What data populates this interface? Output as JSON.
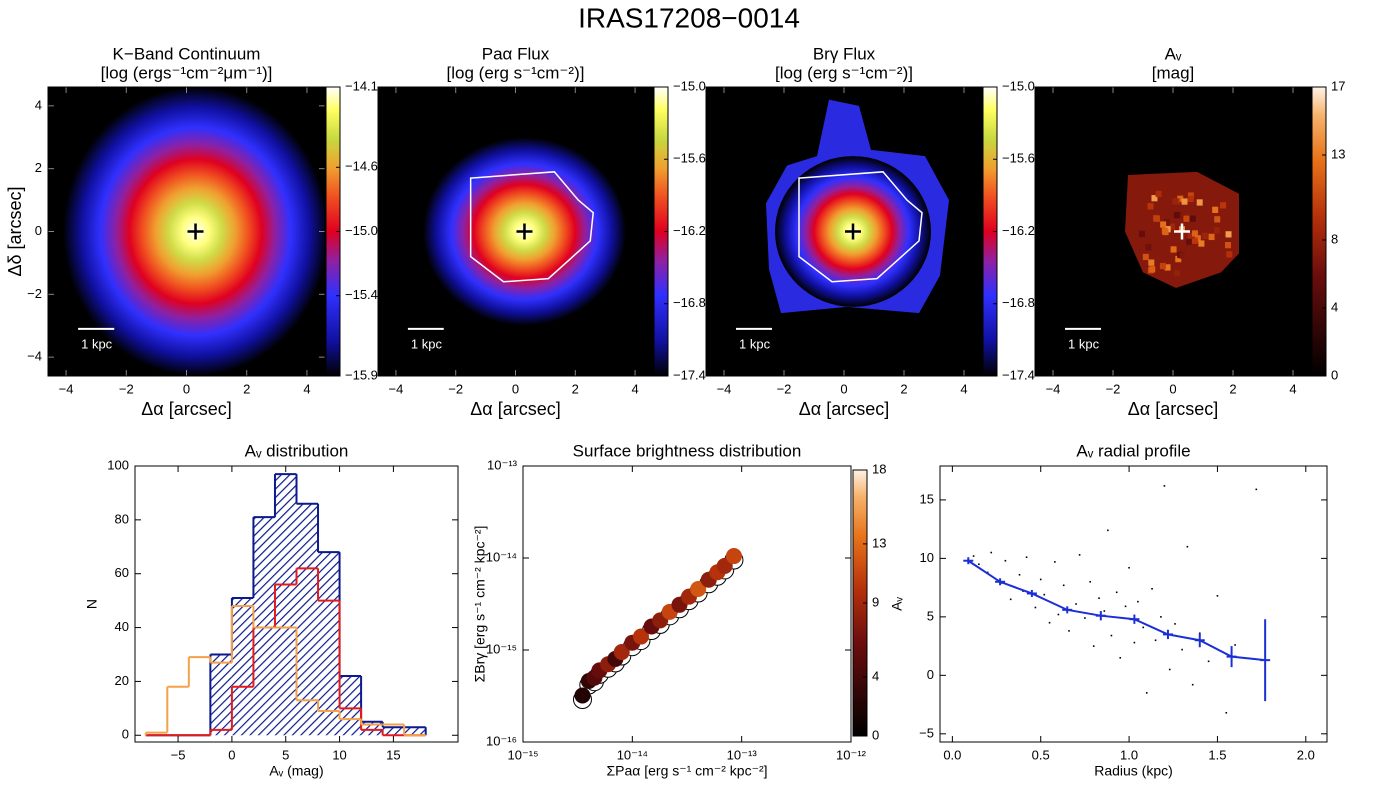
{
  "title": "IRAS17208−0014",
  "chart_data": [
    {
      "type": "image",
      "title": "K−Band Continuum",
      "subtitle": "[log (ergs⁻¹cm⁻²μm⁻¹)]",
      "xlabel": "Δα [arcsec]",
      "ylabel": "Δδ [arcsec]",
      "xlim": [
        -4.6,
        4.6
      ],
      "ylim": [
        -4.6,
        4.6
      ],
      "xticks": [
        {
          "value": -4,
          "label": "−4"
        },
        {
          "value": -2,
          "label": "−2"
        },
        0,
        2,
        4
      ],
      "yticks": [
        {
          "value": -4,
          "label": "−4"
        },
        {
          "value": -2,
          "label": "−2"
        },
        0,
        2,
        4
      ],
      "colormap": "rainbow",
      "contour": false,
      "marker_color": "#000000",
      "scale_bar_label": "1 kpc",
      "colorbar": {
        "lim": [
          -15.9,
          -14.1
        ],
        "ticks": [
          {
            "value": -15.9,
            "label": "−15.9"
          },
          {
            "value": -15.4,
            "label": "−15.4"
          },
          {
            "value": -15.0,
            "label": "−15.0"
          },
          {
            "value": -14.6,
            "label": "−14.6"
          },
          {
            "value": -14.1,
            "label": "−14.1"
          }
        ]
      }
    },
    {
      "type": "image",
      "title": "Paα Flux",
      "subtitle": "[log (erg s⁻¹cm⁻²)]",
      "xlabel": "Δα [arcsec]",
      "xlim": [
        -4.6,
        4.6
      ],
      "ylim": [
        -4.6,
        4.6
      ],
      "xticks": [
        {
          "value": -4,
          "label": "−4"
        },
        {
          "value": -2,
          "label": "−2"
        },
        0,
        2,
        4
      ],
      "colormap": "rainbow",
      "contour": true,
      "marker_color": "#000000",
      "scale_bar_label": "1 kpc",
      "colorbar": {
        "lim": [
          -17.4,
          -15.0
        ],
        "ticks": [
          {
            "value": -17.4,
            "label": "−17.4"
          },
          {
            "value": -16.8,
            "label": "−16.8"
          },
          {
            "value": -16.2,
            "label": "−16.2"
          },
          {
            "value": -15.6,
            "label": "−15.6"
          },
          {
            "value": -15.0,
            "label": "−15.0"
          }
        ]
      }
    },
    {
      "type": "image",
      "title": "Brγ Flux",
      "subtitle": "[log (erg s⁻¹cm⁻²)]",
      "xlabel": "Δα [arcsec]",
      "xlim": [
        -4.6,
        4.6
      ],
      "ylim": [
        -4.6,
        4.6
      ],
      "xticks": [
        {
          "value": -4,
          "label": "−4"
        },
        {
          "value": -2,
          "label": "−2"
        },
        0,
        2,
        4
      ],
      "colormap": "rainbow",
      "contour": true,
      "marker_color": "#000000",
      "scale_bar_label": "1 kpc",
      "colorbar": {
        "lim": [
          -17.4,
          -15.0
        ],
        "ticks": [
          {
            "value": -17.4,
            "label": "−17.4"
          },
          {
            "value": -16.8,
            "label": "−16.8"
          },
          {
            "value": -16.2,
            "label": "−16.2"
          },
          {
            "value": -15.6,
            "label": "−15.6"
          },
          {
            "value": -15.0,
            "label": "−15.0"
          }
        ]
      }
    },
    {
      "type": "image",
      "title": "Aᵥ",
      "subtitle": "[mag]",
      "xlabel": "Δα [arcsec]",
      "xlim": [
        -4.6,
        4.6
      ],
      "ylim": [
        -4.6,
        4.6
      ],
      "xticks": [
        {
          "value": -4,
          "label": "−4"
        },
        {
          "value": -2,
          "label": "−2"
        },
        0,
        2,
        4
      ],
      "colormap": "heat",
      "contour": false,
      "marker_color": "#ffffff",
      "scale_bar_label": "1 kpc",
      "colorbar": {
        "lim": [
          0,
          17
        ],
        "ticks": [
          0,
          4,
          8,
          13,
          17
        ]
      }
    },
    {
      "type": "histogram",
      "title": "Aᵥ distribution",
      "xlabel": "Aᵥ (mag)",
      "ylabel": "N",
      "bins": [
        -8,
        -6,
        -4,
        -2,
        0,
        2,
        4,
        6,
        8,
        10,
        12,
        14,
        16,
        18
      ],
      "series": [
        {
          "color": "#0b1a8c",
          "hatch": true,
          "values": [
            0,
            0,
            0,
            30,
            51,
            81,
            97,
            86,
            68,
            22,
            5,
            3,
            3
          ]
        },
        {
          "color": "#e41a1c",
          "hatch": false,
          "values": [
            0,
            0,
            0,
            2,
            18,
            40,
            56,
            62,
            50,
            10,
            2,
            0,
            0
          ]
        },
        {
          "color": "#f5a04a",
          "hatch": false,
          "values": [
            1,
            18,
            29,
            27,
            48,
            40,
            40,
            13,
            9,
            6,
            4,
            4,
            0
          ]
        }
      ],
      "xlim": [
        -9,
        21
      ],
      "ylim": [
        -2.5,
        100
      ],
      "xticks": [
        {
          "value": -5,
          "label": "−5"
        },
        0,
        5,
        10,
        15
      ],
      "yticks": [
        0,
        20,
        40,
        60,
        80,
        100
      ]
    },
    {
      "type": "scatter",
      "title": "Surface brightness distribution",
      "xlabel": "ΣPaα [erg s⁻¹ cm⁻² kpc⁻²]",
      "ylabel": "ΣBrγ [erg s⁻¹ cm⁻² kpc⁻²]",
      "xscale": "log",
      "yscale": "log",
      "colormap": "heat",
      "x": [
        3.5e-15,
        4e-15,
        4.5e-15,
        5e-15,
        6e-15,
        7e-15,
        8e-15,
        1e-14,
        1.2e-14,
        1.5e-14,
        1.8e-14,
        2.2e-14,
        2.7e-14,
        3.3e-14,
        4e-14,
        5e-14,
        6e-14,
        7e-14,
        8.5e-14
      ],
      "y": [
        3.2e-16,
        4.6e-16,
        5e-16,
        6e-16,
        7e-16,
        8e-16,
        9.5e-16,
        1.2e-15,
        1.4e-15,
        1.8e-15,
        2.1e-15,
        2.6e-15,
        3.1e-15,
        3.8e-15,
        4.6e-15,
        5.8e-15,
        7e-15,
        8.2e-15,
        1.05e-14
      ],
      "c": [
        2,
        3,
        5,
        6,
        8,
        4,
        9,
        7,
        10,
        6,
        8,
        11,
        7,
        9,
        12,
        8,
        10,
        9,
        11
      ],
      "xlim": [
        1e-15,
        1e-12
      ],
      "ylim": [
        1e-16,
        1e-13
      ],
      "xticks": [
        {
          "value": 1e-15,
          "label": "10⁻¹⁵"
        },
        {
          "value": 1e-14,
          "label": "10⁻¹⁴"
        },
        {
          "value": 1e-13,
          "label": "10⁻¹³"
        },
        {
          "value": 1e-12,
          "label": "10⁻¹²"
        }
      ],
      "yticks": [
        {
          "value": 1e-16,
          "label": "10⁻¹⁶"
        },
        {
          "value": 1e-15,
          "label": "10⁻¹⁵"
        },
        {
          "value": 1e-14,
          "label": "10⁻¹⁴"
        },
        {
          "value": 1e-13,
          "label": "10⁻¹³"
        }
      ],
      "colorbar": {
        "lim": [
          0,
          18
        ],
        "ticks": [
          0,
          4,
          9,
          13,
          18
        ]
      }
    },
    {
      "type": "profile",
      "title": "Aᵥ radial profile",
      "xlabel": "Radius (kpc)",
      "ylabel": "Aᵥ",
      "points": {
        "color": "#000000",
        "x": [
          0.12,
          0.15,
          0.2,
          0.22,
          0.28,
          0.3,
          0.33,
          0.38,
          0.4,
          0.42,
          0.47,
          0.5,
          0.52,
          0.55,
          0.58,
          0.6,
          0.63,
          0.66,
          0.7,
          0.72,
          0.75,
          0.78,
          0.8,
          0.83,
          0.86,
          0.88,
          0.9,
          0.93,
          0.95,
          0.98,
          1.0,
          1.03,
          1.05,
          1.08,
          1.1,
          1.13,
          1.15,
          1.18,
          1.2,
          1.23,
          1.26,
          1.3,
          1.33,
          1.36,
          1.4,
          1.45,
          1.5,
          1.55,
          1.6,
          1.72
        ],
        "y": [
          10.2,
          9.5,
          8.8,
          10.5,
          7.9,
          9.8,
          6.5,
          8.6,
          7.2,
          10.1,
          5.8,
          8.2,
          6.9,
          4.5,
          9.7,
          5.2,
          7.7,
          3.8,
          6.1,
          10.3,
          4.9,
          8.0,
          2.5,
          6.6,
          5.5,
          12.4,
          3.4,
          7.1,
          1.5,
          5.9,
          9.2,
          2.8,
          6.3,
          4.1,
          -1.5,
          7.4,
          3.0,
          5.0,
          16.2,
          0.5,
          4.4,
          2.2,
          11.0,
          -0.8,
          3.6,
          1.2,
          6.8,
          -3.2,
          2.6,
          15.9
        ]
      },
      "profile": {
        "color": "#1c2fd6",
        "x": [
          0.09,
          0.27,
          0.45,
          0.65,
          0.84,
          1.03,
          1.22,
          1.4,
          1.58,
          1.77
        ],
        "y": [
          9.8,
          8.0,
          7.0,
          5.6,
          5.1,
          4.8,
          3.5,
          3.0,
          1.6,
          1.3
        ],
        "error": [
          0.3,
          0.3,
          0.3,
          0.3,
          0.4,
          0.4,
          0.4,
          0.6,
          0.9,
          3.5
        ]
      },
      "xlim": [
        -0.07,
        2.12
      ],
      "ylim": [
        -5.7,
        17.9
      ],
      "xticks": [
        {
          "value": 0,
          "label": "0.0"
        },
        0.5,
        {
          "value": 1,
          "label": "1.0"
        },
        1.5,
        {
          "value": 2,
          "label": "2.0"
        }
      ],
      "yticks": [
        {
          "value": -5,
          "label": "−5"
        },
        0,
        5,
        10,
        15
      ]
    }
  ]
}
